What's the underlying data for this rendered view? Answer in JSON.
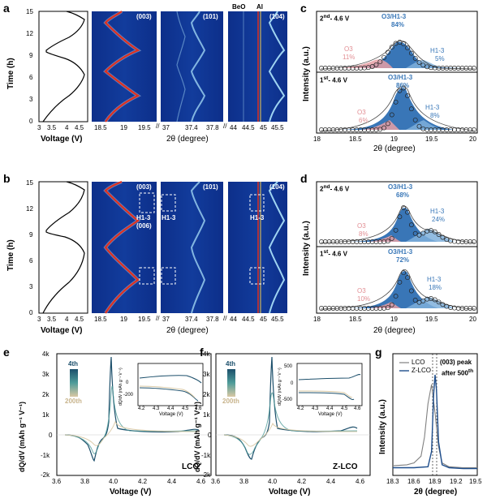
{
  "panels": {
    "a": "a",
    "b": "b",
    "c": "c",
    "d": "d",
    "e": "e",
    "f": "f",
    "g": "g"
  },
  "row_ab": {
    "time_ylabel": "Time (h)",
    "time_ticks": [
      "0",
      "3",
      "6",
      "9",
      "12",
      "15"
    ],
    "voltage_xlabel": "Voltage (V)",
    "voltage_ticks": [
      "3",
      "3.5",
      "4",
      "4.5"
    ],
    "two_theta_label": "2θ (degree)",
    "seg1_ticks": [
      "18.5",
      "19",
      "19.5"
    ],
    "seg2_ticks": [
      "37",
      "37.4",
      "37.8"
    ],
    "seg3_ticks": [
      "44",
      "44.5",
      "45",
      "45.5"
    ],
    "peak_003": "(003)",
    "peak_101": "(101)",
    "peak_104": "(104)",
    "beo": "BeO",
    "al": "Al",
    "b_h13_a": "H1-3",
    "b_h13_a_sub": "(006)",
    "b_h13_b": "H1-3",
    "b_h13_c": "H1-3"
  },
  "panel_c": {
    "ylabel": "Intensity (a.u.)",
    "xlabel": "2θ (degree)",
    "xticks": [
      "18",
      "18.5",
      "19",
      "19.5",
      "20"
    ],
    "top": {
      "title_sup": "nd",
      "title_pre": "2",
      "title_post": "- 4.6 V",
      "o3h13": "O3/H1-3",
      "o3h13_pct": "84%",
      "o3": "O3",
      "o3_pct": "11%",
      "h13": "H1-3",
      "h13_pct": "5%"
    },
    "bottom": {
      "title_sup": "st",
      "title_pre": "1",
      "title_post": "- 4.6 V",
      "o3h13": "O3/H1-3",
      "o3h13_pct": "86%",
      "o3": "O3",
      "o3_pct": "6%",
      "h13": "H1-3",
      "h13_pct": "8%"
    }
  },
  "panel_d": {
    "ylabel": "Intensity (a.u.)",
    "xlabel": "2θ (degree)",
    "xticks": [
      "18",
      "18.5",
      "19",
      "19.5",
      "20"
    ],
    "top": {
      "title_sup": "nd",
      "title_pre": "2",
      "title_post": "- 4.6 V",
      "o3h13": "O3/H1-3",
      "o3h13_pct": "68%",
      "o3": "O3",
      "o3_pct": "8%",
      "h13": "H1-3",
      "h13_pct": "24%"
    },
    "bottom": {
      "title_sup": "st",
      "title_pre": "1",
      "title_post": "- 4.6 V",
      "o3h13": "O3/H1-3",
      "o3h13_pct": "72%",
      "o3": "O3",
      "o3_pct": "10%",
      "h13": "H1-3",
      "h13_pct": "18%"
    }
  },
  "panel_e": {
    "ylabel": "dQ/dV (mAh g⁻¹ V⁻¹)",
    "xlabel": "Voltage (V)",
    "yticks": [
      "-2k",
      "-1k",
      "0",
      "1k",
      "2k",
      "3k",
      "4k"
    ],
    "xticks": [
      "3.6",
      "3.8",
      "4.0",
      "4.2",
      "4.4",
      "4.6"
    ],
    "legend_top": "4th",
    "legend_bottom": "200th",
    "name": "LCO",
    "inset_yticks": [
      "-200",
      "0"
    ],
    "inset_xticks": [
      "4.2",
      "4.3",
      "4.4",
      "4.5",
      "4.6"
    ],
    "inset_xlabel": "Voltage (V)",
    "inset_ylabel": "dQ/dV (mAh g⁻¹ V⁻¹)"
  },
  "panel_f": {
    "ylabel": "dQ/dV (mAh g⁻¹ V⁻¹)",
    "xlabel": "Voltage (V)",
    "yticks": [
      "-2k",
      "-1k",
      "0",
      "1k",
      "2k",
      "3k",
      "4k"
    ],
    "xticks": [
      "3.6",
      "3.8",
      "4.0",
      "4.2",
      "4.4",
      "4.6"
    ],
    "legend_top": "4th",
    "legend_bottom": "200th",
    "name": "Z-LCO",
    "inset_yticks": [
      "-500",
      "0",
      "500"
    ],
    "inset_xticks": [
      "4.2",
      "4.3",
      "4.4",
      "4.5",
      "4.6"
    ],
    "inset_xlabel": "Voltage (V)",
    "inset_ylabel": "dQ/dV (mAh g⁻¹ V⁻¹)"
  },
  "panel_g": {
    "ylabel": "Intensity (a.u.)",
    "xlabel": "2θ (degree)",
    "xticks": [
      "18.3",
      "18.6",
      "18.9",
      "19.2",
      "19.5"
    ],
    "legend": [
      "LCO",
      "Z-LCO"
    ],
    "note1": "(003) peak",
    "note2_pre": "after 500",
    "note2_sup": "th",
    "colors": {
      "lco": "#808080",
      "zlco": "#1f4e8c"
    }
  },
  "colors": {
    "blue_fill": "#2e6fb3",
    "light_blue": "#7fb0dc",
    "pink": "#e8a0a6",
    "label_blue": "#3a78b8",
    "label_pink": "#e28f94",
    "heat_bg": "#0b2a7a"
  },
  "chart_data": [
    {
      "type": "line",
      "panel": "g",
      "xlabel": "2θ (degree)",
      "ylabel": "Intensity (a.u.)",
      "xlim": [
        18.3,
        19.5
      ],
      "series": [
        {
          "name": "LCO",
          "x": [
            18.3,
            18.5,
            18.6,
            18.7,
            18.75,
            18.8,
            18.85,
            18.9,
            18.95,
            19.0,
            19.1,
            19.3,
            19.5
          ],
          "values": [
            0.05,
            0.06,
            0.08,
            0.15,
            0.35,
            0.7,
            0.9,
            0.6,
            0.25,
            0.08,
            0.04,
            0.03,
            0.03
          ]
        },
        {
          "name": "Z-LCO",
          "x": [
            18.3,
            18.6,
            18.8,
            18.85,
            18.88,
            18.9,
            18.92,
            18.95,
            19.0,
            19.1,
            19.3,
            19.5
          ],
          "values": [
            0.03,
            0.03,
            0.04,
            0.2,
            0.8,
            1.0,
            0.85,
            0.3,
            0.06,
            0.03,
            0.02,
            0.02
          ]
        }
      ]
    }
  ]
}
